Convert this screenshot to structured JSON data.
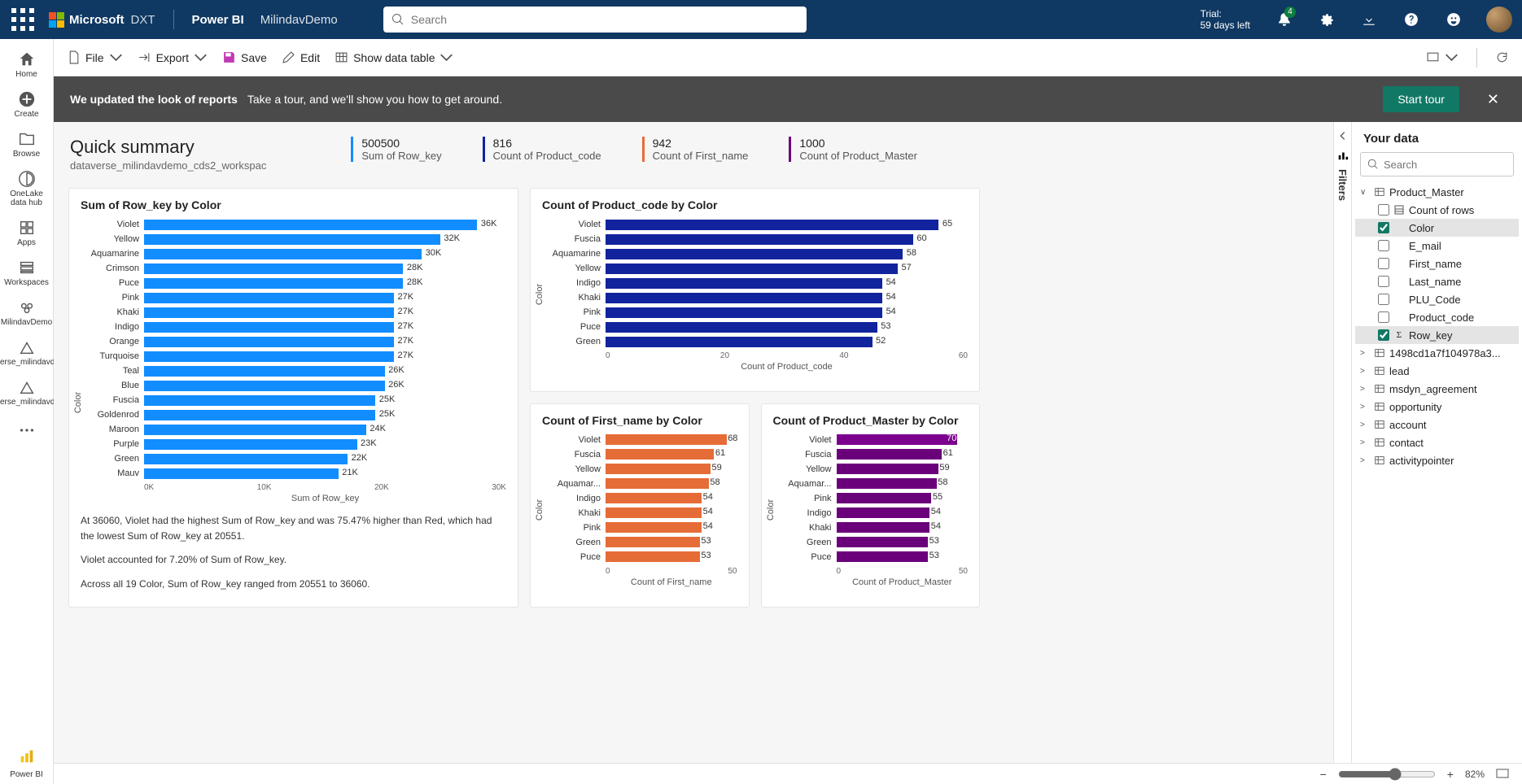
{
  "header": {
    "brand": "Microsoft",
    "brand_suffix": "DXT",
    "app": "Power BI",
    "workspace": "MilindavDemo",
    "search_placeholder": "Search",
    "trial_line1": "Trial:",
    "trial_line2": "59 days left",
    "notif_badge": "4"
  },
  "toolbar": {
    "file": "File",
    "export": "Export",
    "save": "Save",
    "edit": "Edit",
    "show_data_table": "Show data table"
  },
  "banner": {
    "bold": "We updated the look of reports",
    "rest": "Take a tour, and we'll show you how to get around.",
    "button": "Start tour"
  },
  "leftnav": [
    {
      "id": "home",
      "label": "Home"
    },
    {
      "id": "create",
      "label": "Create"
    },
    {
      "id": "browse",
      "label": "Browse"
    },
    {
      "id": "onelake",
      "label": "OneLake data hub"
    },
    {
      "id": "apps",
      "label": "Apps"
    },
    {
      "id": "workspaces",
      "label": "Workspaces"
    },
    {
      "id": "milindav",
      "label": "MilindavDemo"
    },
    {
      "id": "dv1",
      "label": "dataverse_milindavdem..."
    },
    {
      "id": "dv2",
      "label": "dataverse_milindavdem..."
    }
  ],
  "leftnav_footer": "Power BI",
  "summary": {
    "title": "Quick summary",
    "subtitle": "dataverse_milindavdemo_cds2_workspac",
    "kpis": [
      {
        "value": "500500",
        "label": "Sum of Row_key",
        "color": "#118dff"
      },
      {
        "value": "816",
        "label": "Count of Product_code",
        "color": "#12239e"
      },
      {
        "value": "942",
        "label": "Count of First_name",
        "color": "#e66c37"
      },
      {
        "value": "1000",
        "label": "Count of Product_Master",
        "color": "#6b007b"
      }
    ]
  },
  "charts": {
    "rowkey": {
      "title": "Sum of Row_key by Color",
      "ylabel": "Color",
      "xlabel": "Sum of Row_key",
      "color": "#118dff",
      "max": 36,
      "axis_ticks": [
        "0K",
        "10K",
        "20K",
        "30K"
      ],
      "bars": [
        {
          "label": "Violet",
          "value": 36,
          "disp": "36K"
        },
        {
          "label": "Yellow",
          "value": 32,
          "disp": "32K"
        },
        {
          "label": "Aquamarine",
          "value": 30,
          "disp": "30K"
        },
        {
          "label": "Crimson",
          "value": 28,
          "disp": "28K"
        },
        {
          "label": "Puce",
          "value": 28,
          "disp": "28K"
        },
        {
          "label": "Pink",
          "value": 27,
          "disp": "27K"
        },
        {
          "label": "Khaki",
          "value": 27,
          "disp": "27K"
        },
        {
          "label": "Indigo",
          "value": 27,
          "disp": "27K"
        },
        {
          "label": "Orange",
          "value": 27,
          "disp": "27K"
        },
        {
          "label": "Turquoise",
          "value": 27,
          "disp": "27K"
        },
        {
          "label": "Teal",
          "value": 26,
          "disp": "26K"
        },
        {
          "label": "Blue",
          "value": 26,
          "disp": "26K"
        },
        {
          "label": "Fuscia",
          "value": 25,
          "disp": "25K"
        },
        {
          "label": "Goldenrod",
          "value": 25,
          "disp": "25K"
        },
        {
          "label": "Maroon",
          "value": 24,
          "disp": "24K"
        },
        {
          "label": "Purple",
          "value": 23,
          "disp": "23K"
        },
        {
          "label": "Green",
          "value": 22,
          "disp": "22K"
        },
        {
          "label": "Mauv",
          "value": 21,
          "disp": "21K"
        }
      ],
      "insights": [
        "At 36060, Violet had the highest Sum of Row_key and was 75.47% higher than Red, which had the lowest Sum of Row_key at 20551.",
        "Violet accounted for 7.20% of Sum of Row_key.",
        "Across all 19 Color, Sum of Row_key ranged from 20551 to 36060."
      ]
    },
    "productcode": {
      "title": "Count of Product_code by Color",
      "ylabel": "Color",
      "xlabel": "Count of Product_code",
      "color": "#12239e",
      "max": 65,
      "axis_ticks": [
        "0",
        "20",
        "40",
        "60"
      ],
      "bars": [
        {
          "label": "Violet",
          "value": 65,
          "disp": "65"
        },
        {
          "label": "Fuscia",
          "value": 60,
          "disp": "60"
        },
        {
          "label": "Aquamarine",
          "value": 58,
          "disp": "58"
        },
        {
          "label": "Yellow",
          "value": 57,
          "disp": "57"
        },
        {
          "label": "Indigo",
          "value": 54,
          "disp": "54"
        },
        {
          "label": "Khaki",
          "value": 54,
          "disp": "54"
        },
        {
          "label": "Pink",
          "value": 54,
          "disp": "54"
        },
        {
          "label": "Puce",
          "value": 53,
          "disp": "53"
        },
        {
          "label": "Green",
          "value": 52,
          "disp": "52"
        }
      ]
    },
    "firstname": {
      "title": "Count of First_name by Color",
      "ylabel": "Color",
      "xlabel": "Count of First_name",
      "color": "#e66c37",
      "max": 68,
      "axis_ticks": [
        "0",
        "50"
      ],
      "bars": [
        {
          "label": "Violet",
          "value": 68,
          "disp": "68"
        },
        {
          "label": "Fuscia",
          "value": 61,
          "disp": "61"
        },
        {
          "label": "Yellow",
          "value": 59,
          "disp": "59"
        },
        {
          "label": "Aquamar...",
          "value": 58,
          "disp": "58"
        },
        {
          "label": "Indigo",
          "value": 54,
          "disp": "54"
        },
        {
          "label": "Khaki",
          "value": 54,
          "disp": "54"
        },
        {
          "label": "Pink",
          "value": 54,
          "disp": "54"
        },
        {
          "label": "Green",
          "value": 53,
          "disp": "53"
        },
        {
          "label": "Puce",
          "value": 53,
          "disp": "53"
        }
      ]
    },
    "productmaster": {
      "title": "Count of Product_Master by Color",
      "ylabel": "Color",
      "xlabel": "Count of Product_Master",
      "color": "#6b007b",
      "max": 70,
      "axis_ticks": [
        "0",
        "50"
      ],
      "bars": [
        {
          "label": "Violet",
          "value": 70,
          "disp": "70",
          "highlight": true
        },
        {
          "label": "Fuscia",
          "value": 61,
          "disp": "61"
        },
        {
          "label": "Yellow",
          "value": 59,
          "disp": "59"
        },
        {
          "label": "Aquamar...",
          "value": 58,
          "disp": "58"
        },
        {
          "label": "Pink",
          "value": 55,
          "disp": "55"
        },
        {
          "label": "Indigo",
          "value": 54,
          "disp": "54"
        },
        {
          "label": "Khaki",
          "value": 54,
          "disp": "54"
        },
        {
          "label": "Green",
          "value": 53,
          "disp": "53"
        },
        {
          "label": "Puce",
          "value": 53,
          "disp": "53"
        }
      ]
    }
  },
  "filters_label": "Filters",
  "datapane": {
    "title": "Your data",
    "search_placeholder": "Search",
    "tables": [
      {
        "name": "Product_Master",
        "expanded": true,
        "fields": [
          {
            "name": "Count of rows",
            "checked": false,
            "icon": "rows"
          },
          {
            "name": "Color",
            "checked": true,
            "selected": true
          },
          {
            "name": "E_mail",
            "checked": false
          },
          {
            "name": "First_name",
            "checked": false
          },
          {
            "name": "Last_name",
            "checked": false
          },
          {
            "name": "PLU_Code",
            "checked": false
          },
          {
            "name": "Product_code",
            "checked": false
          },
          {
            "name": "Row_key",
            "checked": true,
            "icon": "sigma",
            "selected": true
          }
        ]
      },
      {
        "name": "1498cd1a7f104978a3...",
        "expanded": false
      },
      {
        "name": "lead",
        "expanded": false
      },
      {
        "name": "msdyn_agreement",
        "expanded": false
      },
      {
        "name": "opportunity",
        "expanded": false
      },
      {
        "name": "account",
        "expanded": false
      },
      {
        "name": "contact",
        "expanded": false
      },
      {
        "name": "activitypointer",
        "expanded": false
      }
    ]
  },
  "statusbar": {
    "zoom": "82%"
  }
}
